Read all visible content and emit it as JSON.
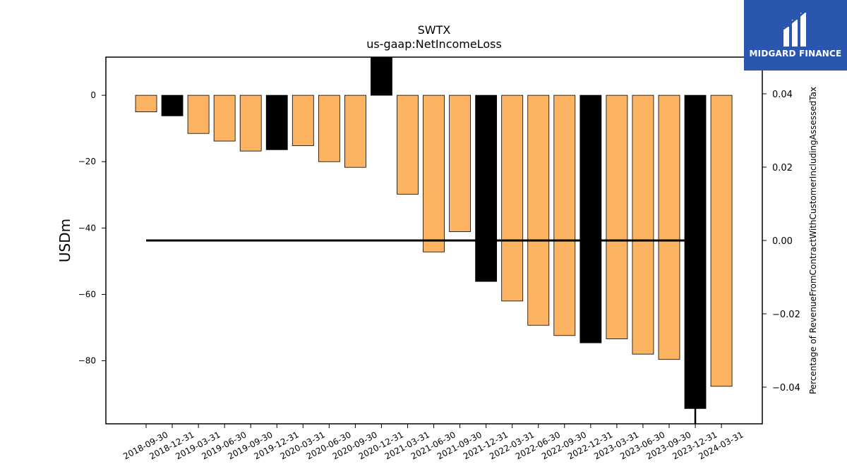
{
  "chart_data": {
    "type": "bar",
    "title": "SWTX",
    "subtitle": "us-gaap:NetIncomeLoss",
    "ylabel": "USDm",
    "y2label": "Percentage of RevenueFromContractWithCustomerIncludingAssessedTax",
    "ylim": [
      -99,
      11.5
    ],
    "y2lim": [
      -0.05,
      0.05
    ],
    "yticks": [
      0,
      -20,
      -40,
      -60,
      -80
    ],
    "y2ticks": [
      0.04,
      0.02,
      0.0,
      -0.02,
      -0.04
    ],
    "y2tick_labels": [
      "0.04",
      "0.02",
      "0.00",
      "−0.02",
      "−0.04"
    ],
    "categories": [
      "2018-09-30",
      "2018-12-31",
      "2019-03-31",
      "2019-06-30",
      "2019-09-30",
      "2019-12-31",
      "2020-03-31",
      "2020-06-30",
      "2020-09-30",
      "2020-12-31",
      "2021-03-31",
      "2021-06-30",
      "2021-09-30",
      "2021-12-31",
      "2022-03-31",
      "2022-06-30",
      "2022-09-30",
      "2022-12-31",
      "2023-03-31",
      "2023-06-30",
      "2023-09-30",
      "2023-12-31",
      "2024-03-31"
    ],
    "values": [
      -5.0,
      -6.2,
      -11.5,
      -13.8,
      -16.8,
      -16.4,
      -15.2,
      -20.0,
      -21.7,
      11.7,
      -29.8,
      -47.2,
      -41.1,
      -56.1,
      -62.0,
      -69.3,
      -72.4,
      -74.6,
      -73.4,
      -78.0,
      -79.6,
      -94.4,
      -87.7
    ],
    "bar_colors": [
      "#fdb462",
      "#000000",
      "#fdb462",
      "#fdb462",
      "#fdb462",
      "#000000",
      "#fdb462",
      "#fdb462",
      "#fdb462",
      "#000000",
      "#fdb462",
      "#fdb462",
      "#fdb462",
      "#000000",
      "#fdb462",
      "#fdb462",
      "#fdb462",
      "#000000",
      "#fdb462",
      "#fdb462",
      "#fdb462",
      "#000000",
      "#fdb462"
    ],
    "ratio_line": {
      "values_y2": 0.0,
      "from_index": 0,
      "to_index": 21,
      "color": "#000000"
    },
    "grid": false
  },
  "logo": {
    "text": "MIDGARD FINANCE",
    "color": "#2a56b0"
  }
}
